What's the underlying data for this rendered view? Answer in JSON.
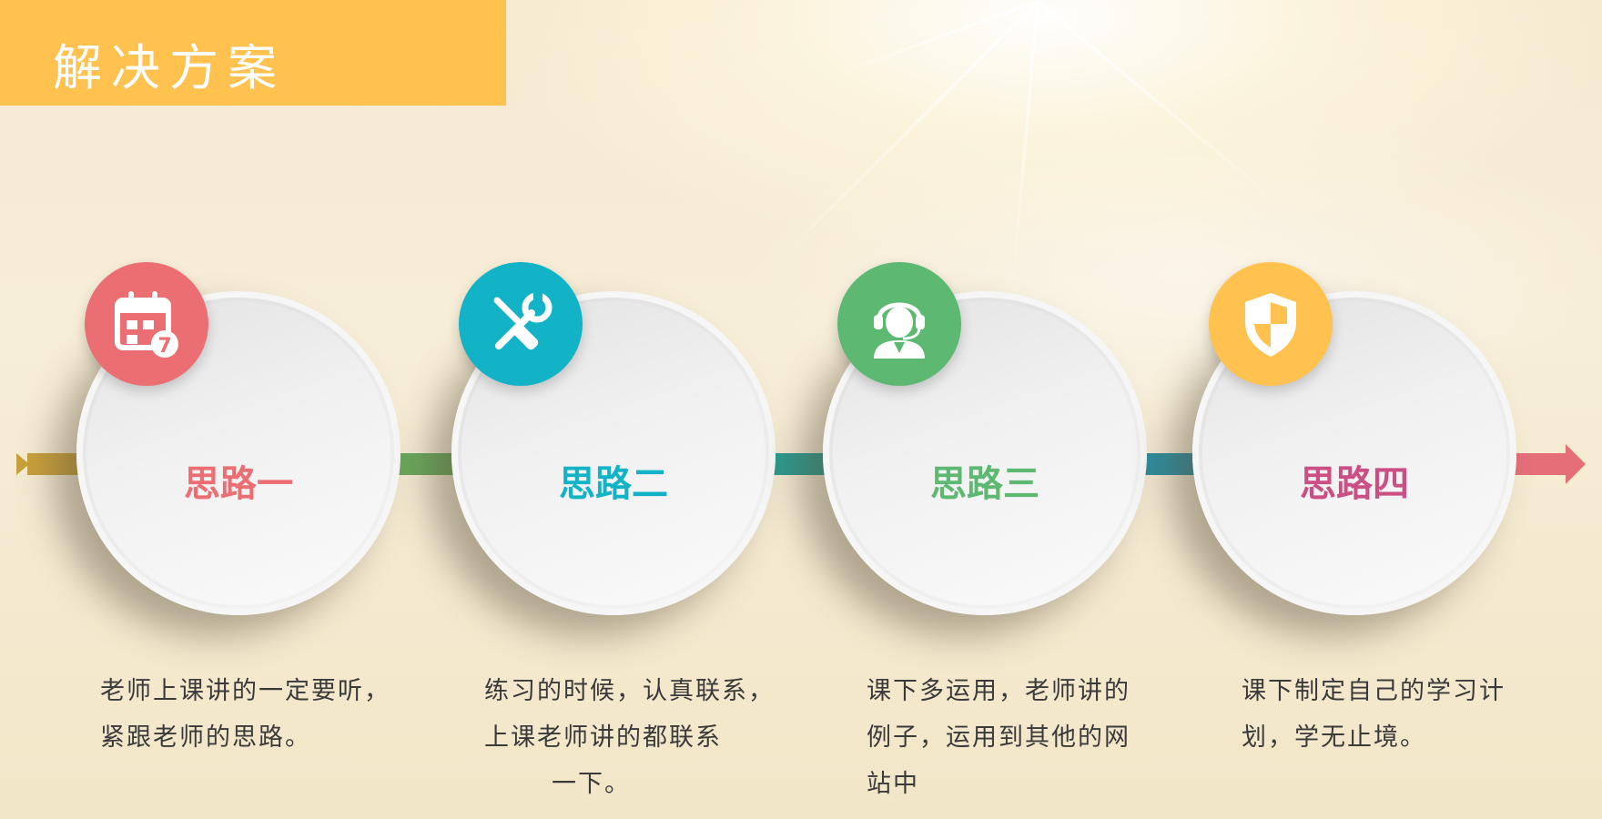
{
  "slide": {
    "title": "解决方案",
    "colors": {
      "title_bg": "#ffc24f",
      "pink": "#ea6e72",
      "teal": "#12b3c6",
      "green": "#5db872",
      "yellow": "#ffc24f",
      "magenta": "#c94f85"
    },
    "steps": [
      {
        "label": "思路一",
        "icon": "calendar-icon",
        "color": "#ea6e72",
        "desc": [
          "老师上课讲的一定要听，",
          "紧跟老师的思路。"
        ]
      },
      {
        "label": "思路二",
        "icon": "tools-icon",
        "color": "#12b3c6",
        "desc": [
          "练习的时候，认真联系，",
          "上课老师讲的都联系",
          "一下。"
        ]
      },
      {
        "label": "思路三",
        "icon": "support-agent-icon",
        "color": "#5db872",
        "desc": [
          "课下多运用，老师讲的",
          "例子，运用到其他的网",
          "站中"
        ]
      },
      {
        "label": "思路四",
        "icon": "shield-icon",
        "color": "#c94f85",
        "desc": [
          "课下制定自己的学习计",
          "划，学无止境。"
        ]
      }
    ]
  }
}
